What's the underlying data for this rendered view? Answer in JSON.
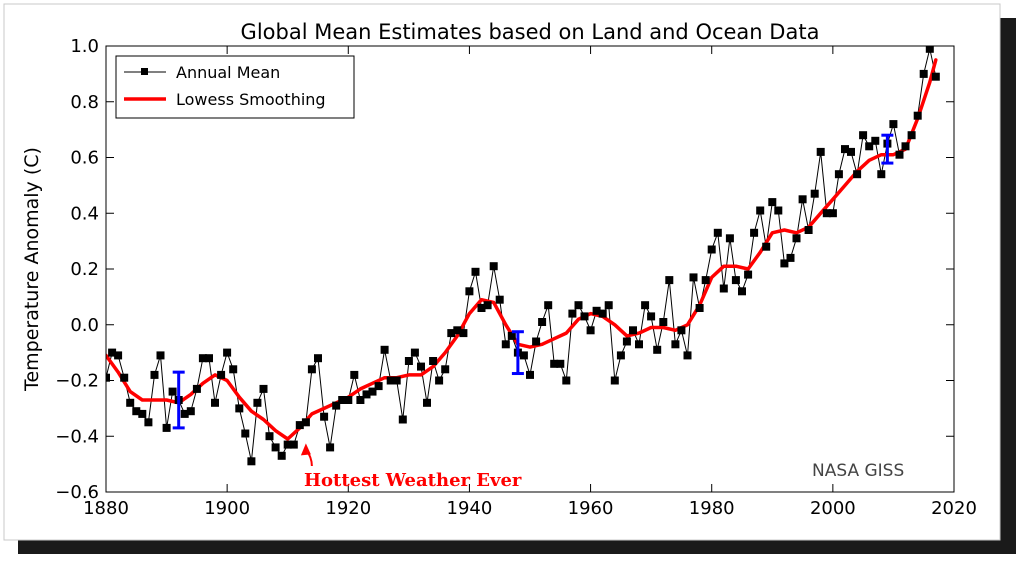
{
  "chart_data": {
    "type": "line",
    "title": "Global Mean Estimates based on Land and Ocean Data",
    "xlabel": "",
    "ylabel": "Temperature Anomaly (C)",
    "xlim": [
      1880,
      2020
    ],
    "ylim": [
      -0.6,
      1.0
    ],
    "x_ticks": [
      1880,
      1900,
      1920,
      1940,
      1960,
      1980,
      2000,
      2020
    ],
    "x_tick_labels": [
      "1880",
      "1900",
      "1920",
      "1940",
      "1960",
      "1980",
      "2000",
      "2020"
    ],
    "y_ticks": [
      -0.6,
      -0.4,
      -0.2,
      0.0,
      0.2,
      0.4,
      0.6,
      0.8,
      1.0
    ],
    "y_tick_labels": [
      "−0.6",
      "−0.4",
      "−0.2",
      "0.0",
      "0.2",
      "0.4",
      "0.6",
      "0.8",
      "1.0"
    ],
    "grid": false,
    "legend_position": "top-left",
    "series": [
      {
        "name": "Annual Mean",
        "color": "#000000",
        "marker": "square",
        "x": [
          1880,
          1881,
          1882,
          1883,
          1884,
          1885,
          1886,
          1887,
          1888,
          1889,
          1890,
          1891,
          1892,
          1893,
          1894,
          1895,
          1896,
          1897,
          1898,
          1899,
          1900,
          1901,
          1902,
          1903,
          1904,
          1905,
          1906,
          1907,
          1908,
          1909,
          1910,
          1911,
          1912,
          1913,
          1914,
          1915,
          1916,
          1917,
          1918,
          1919,
          1920,
          1921,
          1922,
          1923,
          1924,
          1925,
          1926,
          1927,
          1928,
          1929,
          1930,
          1931,
          1932,
          1933,
          1934,
          1935,
          1936,
          1937,
          1938,
          1939,
          1940,
          1941,
          1942,
          1943,
          1944,
          1945,
          1946,
          1947,
          1948,
          1949,
          1950,
          1951,
          1952,
          1953,
          1954,
          1955,
          1956,
          1957,
          1958,
          1959,
          1960,
          1961,
          1962,
          1963,
          1964,
          1965,
          1966,
          1967,
          1968,
          1969,
          1970,
          1971,
          1972,
          1973,
          1974,
          1975,
          1976,
          1977,
          1978,
          1979,
          1980,
          1981,
          1982,
          1983,
          1984,
          1985,
          1986,
          1987,
          1988,
          1989,
          1990,
          1991,
          1992,
          1993,
          1994,
          1995,
          1996,
          1997,
          1998,
          1999,
          2000,
          2001,
          2002,
          2003,
          2004,
          2005,
          2006,
          2007,
          2008,
          2009,
          2010,
          2011,
          2012,
          2013,
          2014,
          2015,
          2016,
          2017
        ],
        "y": [
          -0.19,
          -0.1,
          -0.11,
          -0.19,
          -0.28,
          -0.31,
          -0.32,
          -0.35,
          -0.18,
          -0.11,
          -0.37,
          -0.24,
          -0.27,
          -0.32,
          -0.31,
          -0.23,
          -0.12,
          -0.12,
          -0.28,
          -0.18,
          -0.1,
          -0.16,
          -0.3,
          -0.39,
          -0.49,
          -0.28,
          -0.23,
          -0.4,
          -0.44,
          -0.47,
          -0.43,
          -0.43,
          -0.36,
          -0.35,
          -0.16,
          -0.12,
          -0.33,
          -0.44,
          -0.29,
          -0.27,
          -0.27,
          -0.18,
          -0.27,
          -0.25,
          -0.24,
          -0.22,
          -0.09,
          -0.2,
          -0.2,
          -0.34,
          -0.13,
          -0.1,
          -0.15,
          -0.28,
          -0.13,
          -0.2,
          -0.16,
          -0.03,
          -0.02,
          -0.03,
          0.12,
          0.19,
          0.06,
          0.07,
          0.21,
          0.09,
          -0.07,
          -0.04,
          -0.1,
          -0.11,
          -0.18,
          -0.06,
          0.01,
          0.07,
          -0.14,
          -0.14,
          -0.2,
          0.04,
          0.07,
          0.03,
          -0.02,
          0.05,
          0.04,
          0.07,
          -0.2,
          -0.11,
          -0.06,
          -0.02,
          -0.07,
          0.07,
          0.03,
          -0.09,
          0.01,
          0.16,
          -0.07,
          -0.02,
          -0.11,
          0.17,
          0.06,
          0.16,
          0.27,
          0.33,
          0.13,
          0.31,
          0.16,
          0.12,
          0.18,
          0.33,
          0.41,
          0.28,
          0.44,
          0.41,
          0.22,
          0.24,
          0.31,
          0.45,
          0.34,
          0.47,
          0.62,
          0.4,
          0.4,
          0.54,
          0.63,
          0.62,
          0.54,
          0.68,
          0.64,
          0.66,
          0.54,
          0.65,
          0.72,
          0.61,
          0.64,
          0.68,
          0.75,
          0.9,
          0.99,
          0.89
        ]
      },
      {
        "name": "Lowess Smoothing",
        "color": "#ff0000",
        "marker": "none",
        "x": [
          1880,
          1882,
          1884,
          1886,
          1888,
          1890,
          1892,
          1894,
          1896,
          1898,
          1900,
          1902,
          1904,
          1906,
          1908,
          1910,
          1912,
          1914,
          1916,
          1918,
          1920,
          1922,
          1924,
          1926,
          1928,
          1930,
          1932,
          1934,
          1936,
          1938,
          1940,
          1942,
          1944,
          1946,
          1948,
          1950,
          1952,
          1954,
          1956,
          1958,
          1960,
          1962,
          1964,
          1966,
          1968,
          1970,
          1972,
          1974,
          1976,
          1978,
          1980,
          1982,
          1984,
          1986,
          1988,
          1990,
          1992,
          1994,
          1996,
          1998,
          2000,
          2002,
          2004,
          2006,
          2008,
          2010,
          2012,
          2014,
          2016,
          2017
        ],
        "y": [
          -0.11,
          -0.17,
          -0.24,
          -0.27,
          -0.27,
          -0.27,
          -0.28,
          -0.25,
          -0.21,
          -0.18,
          -0.2,
          -0.26,
          -0.31,
          -0.34,
          -0.38,
          -0.41,
          -0.37,
          -0.32,
          -0.3,
          -0.28,
          -0.26,
          -0.23,
          -0.21,
          -0.19,
          -0.19,
          -0.18,
          -0.18,
          -0.15,
          -0.1,
          -0.04,
          0.04,
          0.09,
          0.08,
          0.0,
          -0.07,
          -0.08,
          -0.07,
          -0.05,
          -0.03,
          0.02,
          0.04,
          0.03,
          0.0,
          -0.04,
          -0.03,
          -0.01,
          -0.01,
          -0.02,
          0.0,
          0.07,
          0.17,
          0.21,
          0.21,
          0.2,
          0.26,
          0.33,
          0.34,
          0.33,
          0.35,
          0.4,
          0.45,
          0.5,
          0.55,
          0.59,
          0.61,
          0.61,
          0.63,
          0.74,
          0.87,
          0.95
        ]
      }
    ],
    "error_bars": [
      {
        "x": 1892,
        "y": -0.27,
        "err": 0.1,
        "color": "#0000ff"
      },
      {
        "x": 1948,
        "y": -0.1,
        "err": 0.075,
        "color": "#0000ff"
      },
      {
        "x": 2009,
        "y": 0.63,
        "err": 0.05,
        "color": "#0000ff"
      }
    ],
    "annotations": [
      {
        "text": "Hottest Weather Ever",
        "color": "#ff0000",
        "arrow_target": [
          1913,
          -0.44
        ]
      },
      {
        "text": "NASA GISS",
        "color": "#444444"
      }
    ]
  }
}
